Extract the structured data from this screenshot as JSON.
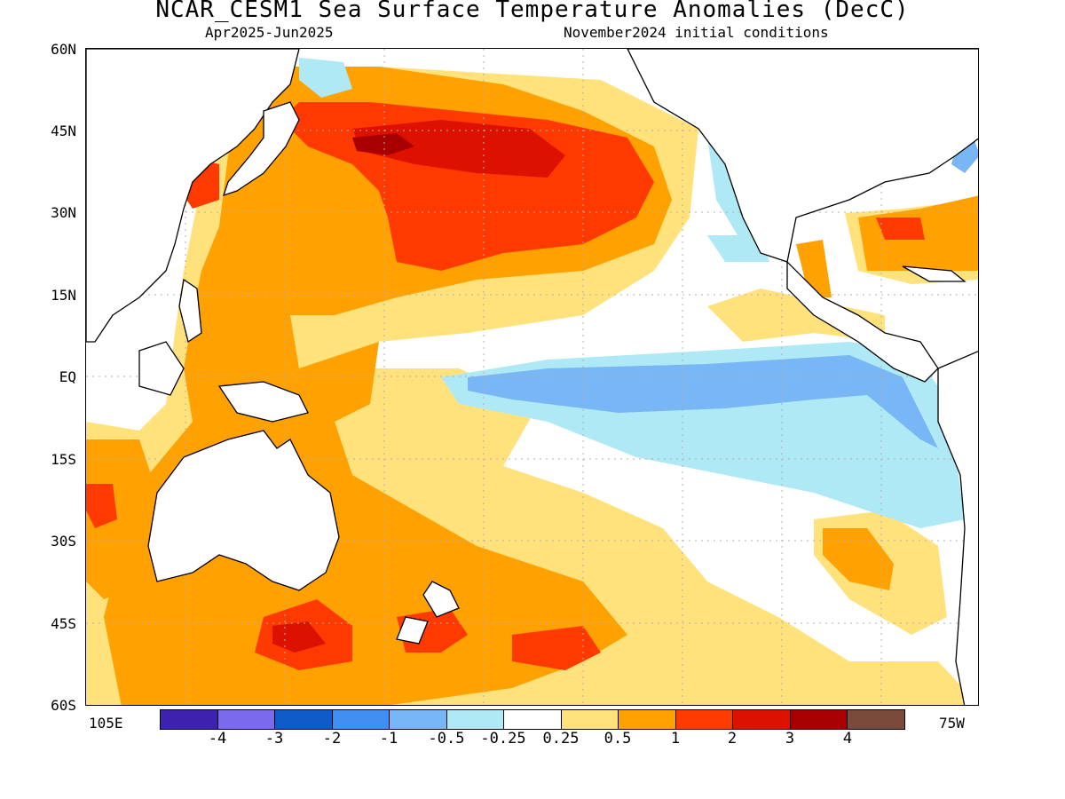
{
  "title": "NCAR_CESM1 Sea Surface Temperature Anomalies (DecC)",
  "subtitle_left": "Apr2025-Jun2025",
  "subtitle_right": "November2024 initial conditions",
  "map": {
    "lat_labels": [
      "60N",
      "45N",
      "30N",
      "15N",
      "EQ",
      "15S",
      "30S",
      "45S",
      "60S"
    ],
    "lon_left": "105E",
    "lon_right": "75W",
    "grid": "dotted, every 15 degrees"
  },
  "colorbar": {
    "tick_labels": [
      "-4",
      "-3",
      "-2",
      "-1",
      "-0.5",
      "-0.25",
      "0.25",
      "0.5",
      "1",
      "2",
      "3",
      "4"
    ],
    "colors": [
      "#3d22b0",
      "#7b6aed",
      "#0f5cc8",
      "#3f8ff0",
      "#79b6f6",
      "#aee9f5",
      "#ffffff",
      "#ffe27c",
      "#ffa100",
      "#ff3a00",
      "#dc1100",
      "#a80000",
      "#7a4a3a"
    ]
  },
  "legend": {
    "continents": "#ffffff",
    "land_outline": "#000000"
  }
}
